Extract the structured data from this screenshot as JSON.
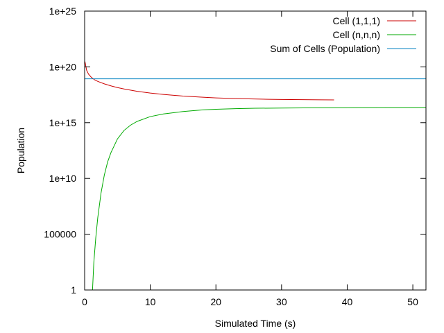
{
  "chart_data": {
    "type": "line",
    "title": "",
    "xlabel": "Simulated Time (s)",
    "ylabel": "Population",
    "xlim": [
      0,
      52
    ],
    "ylim": [
      1,
      1e+25
    ],
    "yscale": "log",
    "grid": false,
    "legend_position": "top-right",
    "x_ticks": [
      0,
      10,
      20,
      30,
      40,
      50
    ],
    "x_tick_labels": [
      "0",
      "10",
      "20",
      "30",
      "40",
      "50"
    ],
    "y_ticks": [
      1,
      100000,
      10000000000.0,
      1000000000000000.0,
      1e+20,
      1e+25
    ],
    "y_tick_labels": [
      "1",
      "100000",
      "1e+10",
      "1e+15",
      "1e+20",
      "1e+25"
    ],
    "series": [
      {
        "name": "Cell (1,1,1)",
        "color": "#cc0000",
        "x": [
          0.05,
          0.3,
          0.6,
          1,
          1.5,
          2,
          3,
          4,
          5,
          6,
          8,
          10,
          12,
          15,
          18,
          20,
          22,
          25,
          28,
          30,
          33,
          36,
          38
        ],
        "y": [
          3e+20,
          5e+19,
          2.2e+19,
          1.2e+19,
          7e+18,
          5e+18,
          3e+18,
          2e+18,
          1.4e+18,
          1.05e+18,
          6.5e+17,
          4.5e+17,
          3.4e+17,
          2.4e+17,
          1.9e+17,
          1.65e+17,
          1.5e+17,
          1.35e+17,
          1.25e+17,
          1.2e+17,
          1.15e+17,
          1.12e+17,
          1.1e+17
        ]
      },
      {
        "name": "Cell (n,n,n)",
        "color": "#00aa00",
        "x": [
          1.2,
          1.4,
          1.7,
          2,
          2.5,
          3,
          3.5,
          4,
          5,
          6,
          7,
          8,
          10,
          12,
          15,
          18,
          20,
          23,
          26,
          30,
          35,
          40,
          45,
          52
        ],
        "y": [
          1,
          300.0,
          50000.0,
          3000000.0,
          500000000.0,
          20000000000.0,
          300000000000.0,
          2000000000000.0,
          35000000000000.0,
          200000000000000.0,
          600000000000000.0,
          1300000000000000.0,
          3500000000000000.0,
          6000000000000000.0,
          1e+16,
          1.4e+16,
          1.6e+16,
          1.8e+16,
          1.95e+16,
          2.05e+16,
          2.15e+16,
          2.2e+16,
          2.25e+16,
          2.3e+16
        ]
      },
      {
        "name": "Sum of Cells (Population)",
        "color": "#0080c0",
        "x": [
          0,
          52
        ],
        "y": [
          8.5e+18,
          8.5e+18
        ]
      }
    ]
  }
}
